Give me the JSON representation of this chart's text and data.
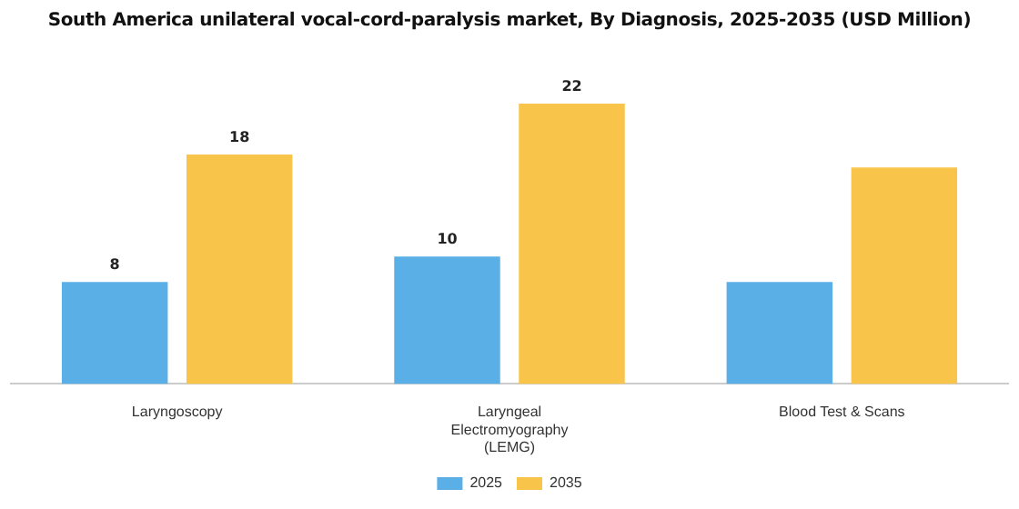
{
  "chart_data": {
    "type": "bar",
    "title": "South America unilateral vocal-cord-paralysis market, By Diagnosis, 2025-2035 (USD Million)",
    "categories": [
      "Laryngoscopy",
      "Laryngeal Electromyography (LEMG)",
      "Blood Test & Scans"
    ],
    "series": [
      {
        "name": "2025",
        "color": "#5aafe6",
        "values": [
          8,
          10,
          8
        ],
        "value_labels": [
          "8",
          "10",
          null
        ]
      },
      {
        "name": "2035",
        "color": "#f9c44a",
        "values": [
          18,
          22,
          17
        ],
        "value_labels": [
          "18",
          "22",
          null
        ]
      }
    ],
    "legend": "bottom",
    "grid": false,
    "tick_labels": "x"
  }
}
